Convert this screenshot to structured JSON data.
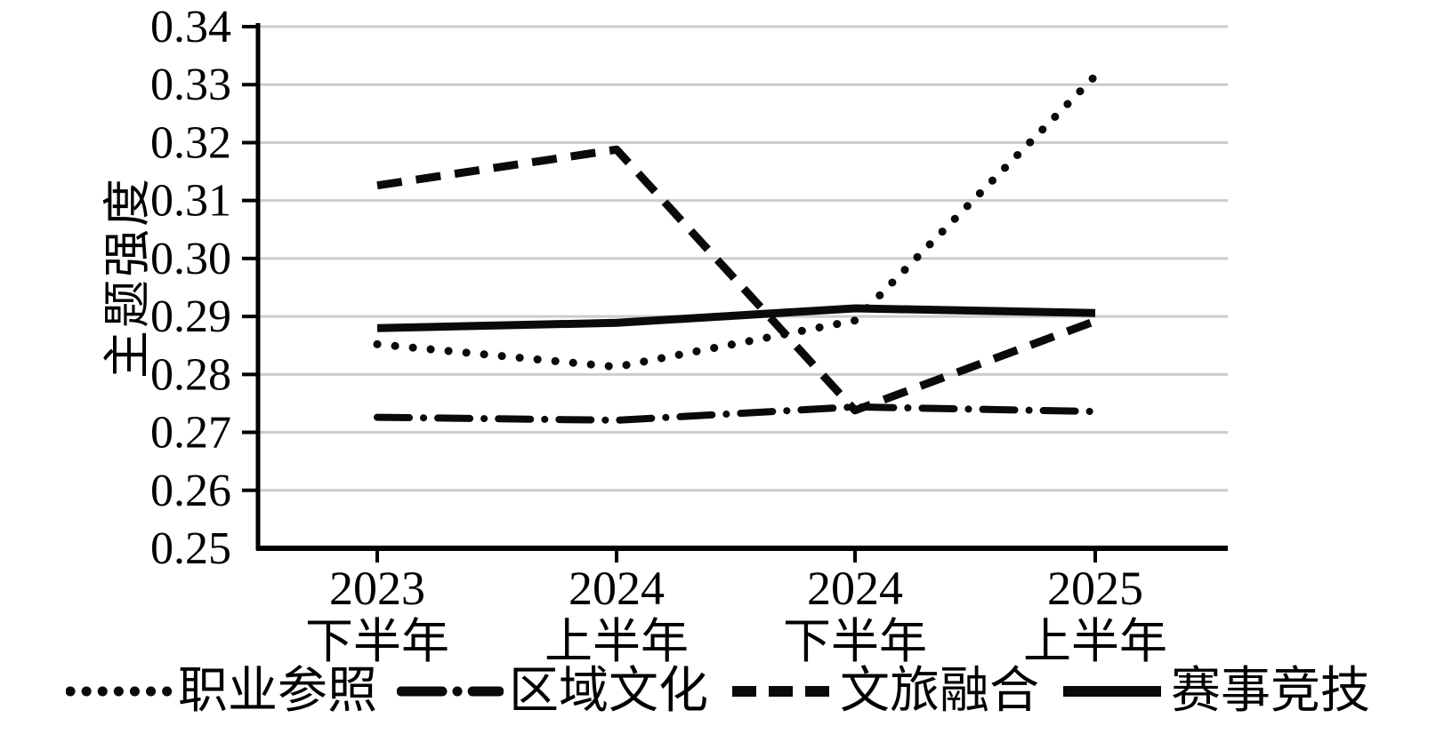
{
  "chart_data": {
    "type": "line",
    "title": "",
    "ylabel": "主题强度",
    "xlabel": "",
    "ylim": [
      0.25,
      0.34
    ],
    "ytick_step": 0.01,
    "ytick_labels": [
      "0.25",
      "0.26",
      "0.27",
      "0.28",
      "0.29",
      "0.30",
      "0.31",
      "0.32",
      "0.33",
      "0.34"
    ],
    "grid": "horizontal-light-gray",
    "legend_position": "bottom",
    "categories": [
      [
        "2023",
        "下半年"
      ],
      [
        "2024",
        "上半年"
      ],
      [
        "2024",
        "下半年"
      ],
      [
        "2025",
        "上半年"
      ]
    ],
    "series": [
      {
        "name": "职业参照",
        "style": "dotted",
        "values": [
          0.2852,
          0.2813,
          0.2893,
          0.3315
        ]
      },
      {
        "name": "区域文化",
        "style": "dashdot",
        "values": [
          0.2726,
          0.2721,
          0.2744,
          0.2736
        ]
      },
      {
        "name": "文旅融合",
        "style": "dashed",
        "values": [
          0.3126,
          0.3188,
          0.2738,
          0.2892
        ]
      },
      {
        "name": "赛事竞技",
        "style": "solid",
        "values": [
          0.288,
          0.2889,
          0.2914,
          0.2906
        ]
      }
    ],
    "colors": {
      "line": "#0a0a0a",
      "grid": "#cccccc",
      "axis": "#000000",
      "text": "#000000",
      "background": "#ffffff"
    }
  }
}
